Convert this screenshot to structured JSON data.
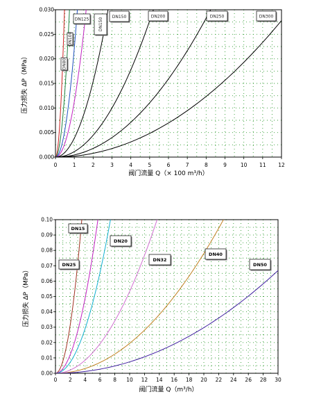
{
  "chart_data": [
    {
      "type": "line",
      "xlabel": "阀门流量 Q（× 100 m³/h）",
      "ylabel": "压力损失 ΔP（MPa）",
      "xlim": [
        0,
        12
      ],
      "ylim": [
        0,
        0.03
      ],
      "x_ticks": [
        "0",
        "1",
        "2",
        "3",
        "4",
        "5",
        "6",
        "7",
        "8",
        "9",
        "10",
        "11",
        "12"
      ],
      "y_ticks": [
        "0.000",
        "0.005",
        "0.010",
        "0.015",
        "0.020",
        "0.025",
        "0.030"
      ],
      "grid": true,
      "label_style": "rotated-box",
      "series": [
        {
          "name": "DN80",
          "color": "#cc2020",
          "k": 0.1305
        },
        {
          "name": "DN100",
          "color": "#208040",
          "k": 0.054
        },
        {
          "name": "DN125",
          "color": "#2050c0",
          "k": 0.0222
        },
        {
          "name": "DN150",
          "color": "#c020c0",
          "k": 0.0113
        },
        {
          "name": "DN150",
          "color": "#000000",
          "k": 0.00385
        },
        {
          "name": "DN200",
          "color": "#000000",
          "k": 0.00111
        },
        {
          "name": "DN250",
          "color": "#000000",
          "k": 0.000442
        },
        {
          "name": "DN300",
          "color": "#000000",
          "k": 0.000193
        }
      ]
    },
    {
      "type": "line",
      "xlabel": "阀门流量 Q（m³/h）",
      "ylabel": "压力损失 ΔP（MPa）",
      "xlim": [
        0,
        30
      ],
      "ylim": [
        0,
        0.1
      ],
      "x_ticks": [
        "0",
        "2",
        "4",
        "6",
        "8",
        "10",
        "12",
        "14",
        "16",
        "18",
        "20",
        "22",
        "24",
        "26",
        "28",
        "30"
      ],
      "y_ticks": [
        "0.00",
        "0.01",
        "0.02",
        "0.03",
        "0.04",
        "0.05",
        "0.06",
        "0.07",
        "0.08",
        "0.09",
        "0.10"
      ],
      "grid": true,
      "label_style": "box",
      "series": [
        {
          "name": "DN15",
          "color": "#a03020",
          "k": 0.00795
        },
        {
          "name": "DN20",
          "color": "#c020c0",
          "k": 0.00306
        },
        {
          "name": "DN25",
          "color": "#10b0d0",
          "k": 0.00182
        },
        {
          "name": "DN32",
          "color": "#d070d0",
          "k": 0.000533
        },
        {
          "name": "DN40",
          "color": "#c08020",
          "k": 0.000195
        },
        {
          "name": "DN50",
          "color": "#4020a0",
          "k": 7.43e-05
        }
      ]
    }
  ]
}
